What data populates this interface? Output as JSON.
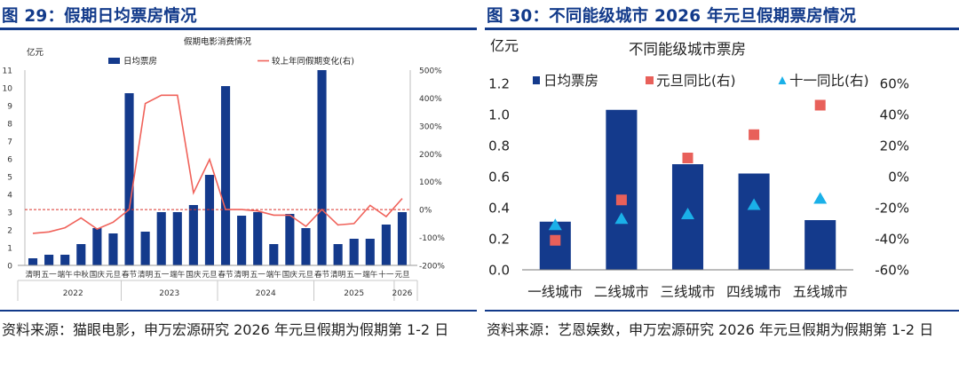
{
  "left": {
    "figure_title": "图 29：假期日均票房情况",
    "source_note": "资料来源：猫眼电影，申万宏源研究  2026 年元旦假期为假期第 1-2 日",
    "chart_data": {
      "type": "bar+line",
      "title": "假期电影消费情况",
      "ylabel": "亿元",
      "ylim": [
        0,
        11
      ],
      "y_ticks": [
        0,
        1,
        2,
        3,
        4,
        5,
        6,
        7,
        8,
        9,
        10,
        11
      ],
      "y2lim": [
        -200,
        500
      ],
      "y2_ticks": [
        -200,
        -100,
        0,
        100,
        200,
        300,
        400,
        500
      ],
      "y2_tick_labels": [
        "-200%",
        "-100%",
        "0%",
        "100%",
        "200%",
        "300%",
        "400%",
        "500%"
      ],
      "categories": [
        "清明",
        "五一",
        "端午",
        "中秋",
        "国庆",
        "元旦",
        "春节",
        "清明",
        "五一",
        "端午",
        "国庆",
        "元旦",
        "春节",
        "清明",
        "五一",
        "端午",
        "国庆",
        "元旦",
        "春节",
        "清明",
        "五一",
        "端午",
        "十一",
        "元旦"
      ],
      "year_groups": [
        {
          "label": "2022",
          "start": 0,
          "end": 5
        },
        {
          "label": "2023",
          "start": 6,
          "end": 11
        },
        {
          "label": "2024",
          "start": 12,
          "end": 17
        },
        {
          "label": "2025",
          "start": 18,
          "end": 22
        },
        {
          "label": "2026",
          "start": 23,
          "end": 23
        }
      ],
      "series": [
        {
          "name": "日均票房",
          "type": "bar",
          "axis": "left",
          "color": "#143a8c",
          "values": [
            0.4,
            0.6,
            0.6,
            1.2,
            2.1,
            1.8,
            9.7,
            1.9,
            3.0,
            3.0,
            3.4,
            5.1,
            10.1,
            2.8,
            3.0,
            1.2,
            2.9,
            2.1,
            11.0,
            1.2,
            1.5,
            1.5,
            2.3,
            3.0
          ]
        },
        {
          "name": "较上年同假期变化(右)",
          "type": "line",
          "axis": "right",
          "color": "#f0625a",
          "values": [
            -85,
            -80,
            -65,
            -30,
            -70,
            -45,
            0,
            380,
            410,
            410,
            60,
            180,
            0,
            0,
            -5,
            -20,
            -20,
            -60,
            0,
            -55,
            -50,
            15,
            -25,
            40
          ]
        }
      ],
      "reference_line": {
        "axis": "right",
        "value": 0,
        "style": "dashed",
        "color": "#d9342b"
      }
    }
  },
  "right": {
    "figure_title": "图 30：不同能级城市 2026 年元旦假期票房情况",
    "source_note": "资料来源：艺恩娱数，申万宏源研究    2026 年元旦假期为假期第 1-2 日",
    "chart_data": {
      "type": "bar+scatter",
      "title": "不同能级城市票房",
      "ylabel": "亿元",
      "ylim": [
        0,
        1.2
      ],
      "y_ticks": [
        0.0,
        0.2,
        0.4,
        0.6,
        0.8,
        1.0,
        1.2
      ],
      "y_tick_labels": [
        "0.0",
        "0.2",
        "0.4",
        "0.6",
        "0.8",
        "1.0",
        "1.2"
      ],
      "y2lim": [
        -60,
        60
      ],
      "y2_ticks": [
        -60,
        -40,
        -20,
        0,
        20,
        40,
        60
      ],
      "y2_tick_labels": [
        "-60%",
        "-40%",
        "-20%",
        "0%",
        "20%",
        "40%",
        "60%"
      ],
      "categories": [
        "一线城市",
        "二线城市",
        "三线城市",
        "四线城市",
        "五线城市"
      ],
      "series": [
        {
          "name": "日均票房",
          "type": "bar",
          "axis": "left",
          "color": "#143a8c",
          "values": [
            0.31,
            1.03,
            0.68,
            0.62,
            0.32
          ]
        },
        {
          "name": "元旦同比(右)",
          "type": "scatter",
          "marker": "square",
          "axis": "right",
          "color": "#e8605a",
          "values": [
            -41,
            -15,
            12,
            27,
            46
          ]
        },
        {
          "name": "十一同比(右)",
          "type": "scatter",
          "marker": "triangle",
          "axis": "right",
          "color": "#1ab0e8",
          "values": [
            -31,
            -27,
            -24,
            -18,
            -14
          ]
        }
      ]
    }
  }
}
